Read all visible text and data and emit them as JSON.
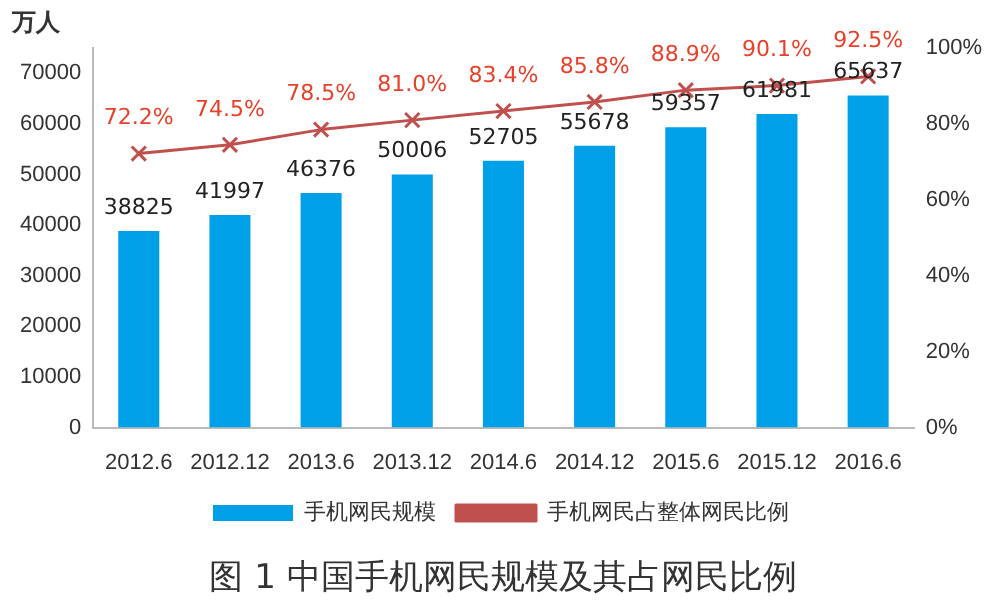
{
  "chart_data": {
    "type": "bar",
    "title": "图 1  中国手机网民规模及其占网民比例",
    "ylabel": "万人",
    "categories": [
      "2012.6",
      "2012.12",
      "2013.6",
      "2013.12",
      "2014.6",
      "2014.12",
      "2015.6",
      "2015.12",
      "2016.6"
    ],
    "series": [
      {
        "name": "手机网民规模",
        "color": "#00a0e9",
        "values": [
          38825,
          41997,
          46376,
          50006,
          52705,
          55678,
          59357,
          61981,
          65637
        ],
        "value_labels": [
          "38825",
          "41997",
          "46376",
          "50006",
          "52705",
          "55678",
          "59357",
          "61981",
          "65637"
        ]
      },
      {
        "name": "手机网民占整体网民比例",
        "type": "line",
        "axis": "y2",
        "color": "#c0504d",
        "values": [
          72.2,
          74.5,
          78.5,
          81.0,
          83.4,
          85.8,
          88.9,
          90.1,
          92.5
        ],
        "value_labels": [
          "72.2%",
          "74.5%",
          "78.5%",
          "81.0%",
          "83.4%",
          "85.8%",
          "88.9%",
          "90.1%",
          "92.5%"
        ]
      }
    ],
    "ylim": [
      0,
      75000
    ],
    "yticks": [
      0,
      10000,
      20000,
      30000,
      40000,
      50000,
      60000,
      70000
    ],
    "y2lim": [
      0,
      100
    ],
    "y2ticks": [
      {
        "value": 0,
        "label": "0%"
      },
      {
        "value": 20,
        "label": "20%"
      },
      {
        "value": 40,
        "label": "40%"
      },
      {
        "value": 60,
        "label": "60%"
      },
      {
        "value": 80,
        "label": "80%"
      },
      {
        "value": 100,
        "label": "100%"
      }
    ],
    "marker": "cross",
    "legend": "bottom",
    "grid": false
  }
}
